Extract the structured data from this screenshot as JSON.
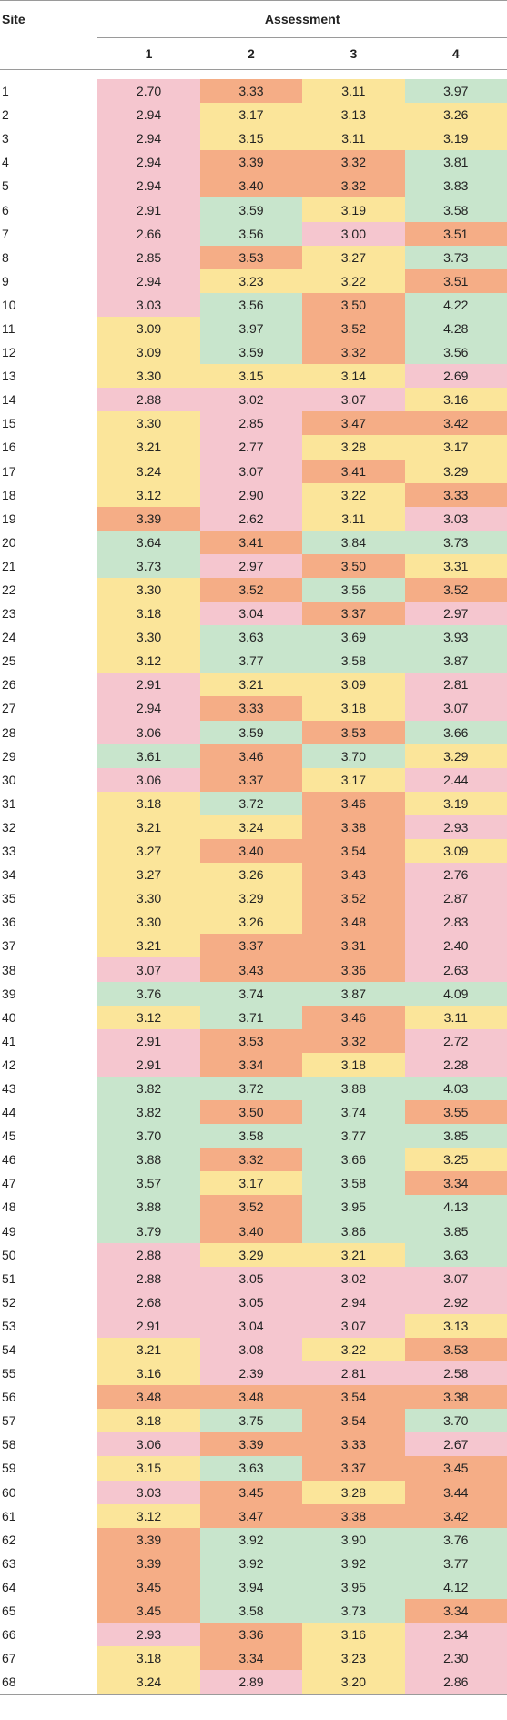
{
  "table": {
    "site_header": "Site",
    "group_header": "Assessment",
    "columns": [
      "1",
      "2",
      "3",
      "4"
    ],
    "colors": {
      "r": "#f5c6cf",
      "y": "#fbe59a",
      "o": "#f5ad86",
      "g": "#c8e5cc"
    },
    "rows": [
      {
        "site": "1",
        "vals": [
          "2.70",
          "3.33",
          "3.11",
          "3.97"
        ],
        "c": [
          "r",
          "o",
          "y",
          "g"
        ]
      },
      {
        "site": "2",
        "vals": [
          "2.94",
          "3.17",
          "3.13",
          "3.26"
        ],
        "c": [
          "r",
          "y",
          "y",
          "y"
        ]
      },
      {
        "site": "3",
        "vals": [
          "2.94",
          "3.15",
          "3.11",
          "3.19"
        ],
        "c": [
          "r",
          "y",
          "y",
          "y"
        ]
      },
      {
        "site": "4",
        "vals": [
          "2.94",
          "3.39",
          "3.32",
          "3.81"
        ],
        "c": [
          "r",
          "o",
          "o",
          "g"
        ]
      },
      {
        "site": "5",
        "vals": [
          "2.94",
          "3.40",
          "3.32",
          "3.83"
        ],
        "c": [
          "r",
          "o",
          "o",
          "g"
        ]
      },
      {
        "site": "6",
        "vals": [
          "2.91",
          "3.59",
          "3.19",
          "3.58"
        ],
        "c": [
          "r",
          "g",
          "y",
          "g"
        ]
      },
      {
        "site": "7",
        "vals": [
          "2.66",
          "3.56",
          "3.00",
          "3.51"
        ],
        "c": [
          "r",
          "g",
          "r",
          "o"
        ]
      },
      {
        "site": "8",
        "vals": [
          "2.85",
          "3.53",
          "3.27",
          "3.73"
        ],
        "c": [
          "r",
          "o",
          "y",
          "g"
        ]
      },
      {
        "site": "9",
        "vals": [
          "2.94",
          "3.23",
          "3.22",
          "3.51"
        ],
        "c": [
          "r",
          "y",
          "y",
          "o"
        ]
      },
      {
        "site": "10",
        "vals": [
          "3.03",
          "3.56",
          "3.50",
          "4.22"
        ],
        "c": [
          "r",
          "g",
          "o",
          "g"
        ]
      },
      {
        "site": "11",
        "vals": [
          "3.09",
          "3.97",
          "3.52",
          "4.28"
        ],
        "c": [
          "y",
          "g",
          "o",
          "g"
        ]
      },
      {
        "site": "12",
        "vals": [
          "3.09",
          "3.59",
          "3.32",
          "3.56"
        ],
        "c": [
          "y",
          "g",
          "o",
          "g"
        ]
      },
      {
        "site": "13",
        "vals": [
          "3.30",
          "3.15",
          "3.14",
          "2.69"
        ],
        "c": [
          "y",
          "y",
          "y",
          "r"
        ]
      },
      {
        "site": "14",
        "vals": [
          "2.88",
          "3.02",
          "3.07",
          "3.16"
        ],
        "c": [
          "r",
          "r",
          "r",
          "y"
        ]
      },
      {
        "site": "15",
        "vals": [
          "3.30",
          "2.85",
          "3.47",
          "3.42"
        ],
        "c": [
          "y",
          "r",
          "o",
          "o"
        ]
      },
      {
        "site": "16",
        "vals": [
          "3.21",
          "2.77",
          "3.28",
          "3.17"
        ],
        "c": [
          "y",
          "r",
          "y",
          "y"
        ]
      },
      {
        "site": "17",
        "vals": [
          "3.24",
          "3.07",
          "3.41",
          "3.29"
        ],
        "c": [
          "y",
          "r",
          "o",
          "y"
        ]
      },
      {
        "site": "18",
        "vals": [
          "3.12",
          "2.90",
          "3.22",
          "3.33"
        ],
        "c": [
          "y",
          "r",
          "y",
          "o"
        ]
      },
      {
        "site": "19",
        "vals": [
          "3.39",
          "2.62",
          "3.11",
          "3.03"
        ],
        "c": [
          "o",
          "r",
          "y",
          "r"
        ]
      },
      {
        "site": "20",
        "vals": [
          "3.64",
          "3.41",
          "3.84",
          "3.73"
        ],
        "c": [
          "g",
          "o",
          "g",
          "g"
        ]
      },
      {
        "site": "21",
        "vals": [
          "3.73",
          "2.97",
          "3.50",
          "3.31"
        ],
        "c": [
          "g",
          "r",
          "o",
          "y"
        ]
      },
      {
        "site": "22",
        "vals": [
          "3.30",
          "3.52",
          "3.56",
          "3.52"
        ],
        "c": [
          "y",
          "o",
          "g",
          "o"
        ]
      },
      {
        "site": "23",
        "vals": [
          "3.18",
          "3.04",
          "3.37",
          "2.97"
        ],
        "c": [
          "y",
          "r",
          "o",
          "r"
        ]
      },
      {
        "site": "24",
        "vals": [
          "3.30",
          "3.63",
          "3.69",
          "3.93"
        ],
        "c": [
          "y",
          "g",
          "g",
          "g"
        ]
      },
      {
        "site": "25",
        "vals": [
          "3.12",
          "3.77",
          "3.58",
          "3.87"
        ],
        "c": [
          "y",
          "g",
          "g",
          "g"
        ]
      },
      {
        "site": "26",
        "vals": [
          "2.91",
          "3.21",
          "3.09",
          "2.81"
        ],
        "c": [
          "r",
          "y",
          "y",
          "r"
        ]
      },
      {
        "site": "27",
        "vals": [
          "2.94",
          "3.33",
          "3.18",
          "3.07"
        ],
        "c": [
          "r",
          "o",
          "y",
          "r"
        ]
      },
      {
        "site": "28",
        "vals": [
          "3.06",
          "3.59",
          "3.53",
          "3.66"
        ],
        "c": [
          "r",
          "g",
          "o",
          "g"
        ]
      },
      {
        "site": "29",
        "vals": [
          "3.61",
          "3.46",
          "3.70",
          "3.29"
        ],
        "c": [
          "g",
          "o",
          "g",
          "y"
        ]
      },
      {
        "site": "30",
        "vals": [
          "3.06",
          "3.37",
          "3.17",
          "2.44"
        ],
        "c": [
          "r",
          "o",
          "y",
          "r"
        ]
      },
      {
        "site": "31",
        "vals": [
          "3.18",
          "3.72",
          "3.46",
          "3.19"
        ],
        "c": [
          "y",
          "g",
          "o",
          "y"
        ]
      },
      {
        "site": "32",
        "vals": [
          "3.21",
          "3.24",
          "3.38",
          "2.93"
        ],
        "c": [
          "y",
          "y",
          "o",
          "r"
        ]
      },
      {
        "site": "33",
        "vals": [
          "3.27",
          "3.40",
          "3.54",
          "3.09"
        ],
        "c": [
          "y",
          "o",
          "o",
          "y"
        ]
      },
      {
        "site": "34",
        "vals": [
          "3.27",
          "3.26",
          "3.43",
          "2.76"
        ],
        "c": [
          "y",
          "y",
          "o",
          "r"
        ]
      },
      {
        "site": "35",
        "vals": [
          "3.30",
          "3.29",
          "3.52",
          "2.87"
        ],
        "c": [
          "y",
          "y",
          "o",
          "r"
        ]
      },
      {
        "site": "36",
        "vals": [
          "3.30",
          "3.26",
          "3.48",
          "2.83"
        ],
        "c": [
          "y",
          "y",
          "o",
          "r"
        ]
      },
      {
        "site": "37",
        "vals": [
          "3.21",
          "3.37",
          "3.31",
          "2.40"
        ],
        "c": [
          "y",
          "o",
          "o",
          "r"
        ]
      },
      {
        "site": "38",
        "vals": [
          "3.07",
          "3.43",
          "3.36",
          "2.63"
        ],
        "c": [
          "r",
          "o",
          "o",
          "r"
        ]
      },
      {
        "site": "39",
        "vals": [
          "3.76",
          "3.74",
          "3.87",
          "4.09"
        ],
        "c": [
          "g",
          "g",
          "g",
          "g"
        ]
      },
      {
        "site": "40",
        "vals": [
          "3.12",
          "3.71",
          "3.46",
          "3.11"
        ],
        "c": [
          "y",
          "g",
          "o",
          "y"
        ]
      },
      {
        "site": "41",
        "vals": [
          "2.91",
          "3.53",
          "3.32",
          "2.72"
        ],
        "c": [
          "r",
          "o",
          "o",
          "r"
        ]
      },
      {
        "site": "42",
        "vals": [
          "2.91",
          "3.34",
          "3.18",
          "2.28"
        ],
        "c": [
          "r",
          "o",
          "y",
          "r"
        ]
      },
      {
        "site": "43",
        "vals": [
          "3.82",
          "3.72",
          "3.88",
          "4.03"
        ],
        "c": [
          "g",
          "g",
          "g",
          "g"
        ]
      },
      {
        "site": "44",
        "vals": [
          "3.82",
          "3.50",
          "3.74",
          "3.55"
        ],
        "c": [
          "g",
          "o",
          "g",
          "o"
        ]
      },
      {
        "site": "45",
        "vals": [
          "3.70",
          "3.58",
          "3.77",
          "3.85"
        ],
        "c": [
          "g",
          "g",
          "g",
          "g"
        ]
      },
      {
        "site": "46",
        "vals": [
          "3.88",
          "3.32",
          "3.66",
          "3.25"
        ],
        "c": [
          "g",
          "o",
          "g",
          "y"
        ]
      },
      {
        "site": "47",
        "vals": [
          "3.57",
          "3.17",
          "3.58",
          "3.34"
        ],
        "c": [
          "g",
          "y",
          "g",
          "o"
        ]
      },
      {
        "site": "48",
        "vals": [
          "3.88",
          "3.52",
          "3.95",
          "4.13"
        ],
        "c": [
          "g",
          "o",
          "g",
          "g"
        ]
      },
      {
        "site": "49",
        "vals": [
          "3.79",
          "3.40",
          "3.86",
          "3.85"
        ],
        "c": [
          "g",
          "o",
          "g",
          "g"
        ]
      },
      {
        "site": "50",
        "vals": [
          "2.88",
          "3.29",
          "3.21",
          "3.63"
        ],
        "c": [
          "r",
          "y",
          "y",
          "g"
        ]
      },
      {
        "site": "51",
        "vals": [
          "2.88",
          "3.05",
          "3.02",
          "3.07"
        ],
        "c": [
          "r",
          "r",
          "r",
          "r"
        ]
      },
      {
        "site": "52",
        "vals": [
          "2.68",
          "3.05",
          "2.94",
          "2.92"
        ],
        "c": [
          "r",
          "r",
          "r",
          "r"
        ]
      },
      {
        "site": "53",
        "vals": [
          "2.91",
          "3.04",
          "3.07",
          "3.13"
        ],
        "c": [
          "r",
          "r",
          "r",
          "y"
        ]
      },
      {
        "site": "54",
        "vals": [
          "3.21",
          "3.08",
          "3.22",
          "3.53"
        ],
        "c": [
          "y",
          "r",
          "y",
          "o"
        ]
      },
      {
        "site": "55",
        "vals": [
          "3.16",
          "2.39",
          "2.81",
          "2.58"
        ],
        "c": [
          "y",
          "r",
          "r",
          "r"
        ]
      },
      {
        "site": "56",
        "vals": [
          "3.48",
          "3.48",
          "3.54",
          "3.38"
        ],
        "c": [
          "o",
          "o",
          "o",
          "o"
        ]
      },
      {
        "site": "57",
        "vals": [
          "3.18",
          "3.75",
          "3.54",
          "3.70"
        ],
        "c": [
          "y",
          "g",
          "o",
          "g"
        ]
      },
      {
        "site": "58",
        "vals": [
          "3.06",
          "3.39",
          "3.33",
          "2.67"
        ],
        "c": [
          "r",
          "o",
          "o",
          "r"
        ]
      },
      {
        "site": "59",
        "vals": [
          "3.15",
          "3.63",
          "3.37",
          "3.45"
        ],
        "c": [
          "y",
          "g",
          "o",
          "o"
        ]
      },
      {
        "site": "60",
        "vals": [
          "3.03",
          "3.45",
          "3.28",
          "3.44"
        ],
        "c": [
          "r",
          "o",
          "y",
          "o"
        ]
      },
      {
        "site": "61",
        "vals": [
          "3.12",
          "3.47",
          "3.38",
          "3.42"
        ],
        "c": [
          "y",
          "o",
          "o",
          "o"
        ]
      },
      {
        "site": "62",
        "vals": [
          "3.39",
          "3.92",
          "3.90",
          "3.76"
        ],
        "c": [
          "o",
          "g",
          "g",
          "g"
        ]
      },
      {
        "site": "63",
        "vals": [
          "3.39",
          "3.92",
          "3.92",
          "3.77"
        ],
        "c": [
          "o",
          "g",
          "g",
          "g"
        ]
      },
      {
        "site": "64",
        "vals": [
          "3.45",
          "3.94",
          "3.95",
          "4.12"
        ],
        "c": [
          "o",
          "g",
          "g",
          "g"
        ]
      },
      {
        "site": "65",
        "vals": [
          "3.45",
          "3.58",
          "3.73",
          "3.34"
        ],
        "c": [
          "o",
          "g",
          "g",
          "o"
        ]
      },
      {
        "site": "66",
        "vals": [
          "2.93",
          "3.36",
          "3.16",
          "2.34"
        ],
        "c": [
          "r",
          "o",
          "y",
          "r"
        ]
      },
      {
        "site": "67",
        "vals": [
          "3.18",
          "3.34",
          "3.23",
          "2.30"
        ],
        "c": [
          "y",
          "o",
          "y",
          "r"
        ]
      },
      {
        "site": "68",
        "vals": [
          "3.24",
          "2.89",
          "3.20",
          "2.86"
        ],
        "c": [
          "y",
          "r",
          "y",
          "r"
        ]
      }
    ]
  }
}
